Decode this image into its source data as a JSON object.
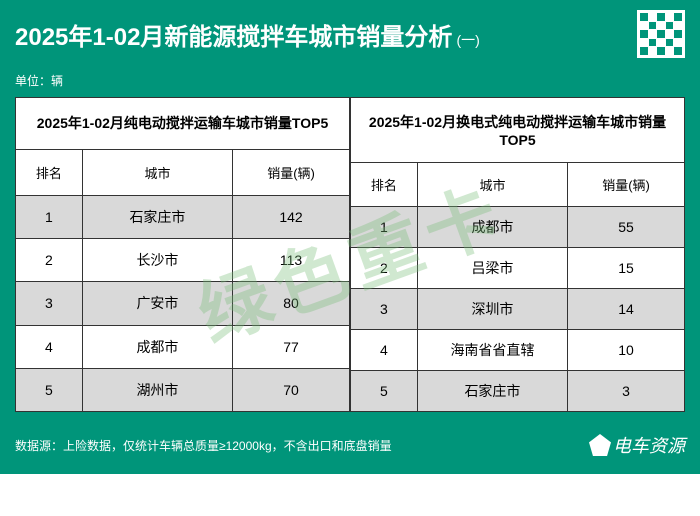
{
  "header": {
    "title_main": "2025年1-02月新能源搅拌车城市销量分析",
    "title_sub": "(一)"
  },
  "unit_label": "单位：辆",
  "left_table": {
    "header": "2025年1-02月纯电动搅拌运输车城市销量TOP5",
    "columns": {
      "rank": "排名",
      "city": "城市",
      "value": "销量(辆)"
    },
    "rows": [
      {
        "rank": "1",
        "city": "石家庄市",
        "value": "142"
      },
      {
        "rank": "2",
        "city": "长沙市",
        "value": "113"
      },
      {
        "rank": "3",
        "city": "广安市",
        "value": "80"
      },
      {
        "rank": "4",
        "city": "成都市",
        "value": "77"
      },
      {
        "rank": "5",
        "city": "湖州市",
        "value": "70"
      }
    ]
  },
  "right_table": {
    "header": "2025年1-02月换电式纯电动搅拌运输车城市销量TOP5",
    "columns": {
      "rank": "排名",
      "city": "城市",
      "value": "销量(辆)"
    },
    "rows": [
      {
        "rank": "1",
        "city": "成都市",
        "value": "55"
      },
      {
        "rank": "2",
        "city": "吕梁市",
        "value": "15"
      },
      {
        "rank": "3",
        "city": "深圳市",
        "value": "14"
      },
      {
        "rank": "4",
        "city": "海南省省直辖",
        "value": "10"
      },
      {
        "rank": "5",
        "city": "石家庄市",
        "value": "3"
      }
    ]
  },
  "footer": {
    "source": "数据源：上险数据，仅统计车辆总质量≥12000kg，不含出口和底盘销量",
    "brand": "电车资源"
  },
  "watermark": "绿色重卡",
  "colors": {
    "primary": "#00957a",
    "row_alt": "#d9d9d9",
    "border": "#333333",
    "text_inverse": "#ffffff"
  }
}
